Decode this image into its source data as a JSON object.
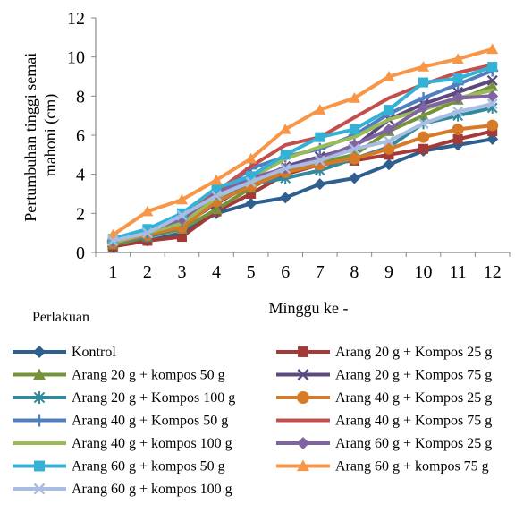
{
  "chart_data": {
    "type": "line",
    "title": "",
    "xlabel": "Minggu ke -",
    "ylabel": "Pertumbuhan tinggi semai mahoni (cm)",
    "ylabel_lines": [
      "Pertumbuhan tinggi semai",
      "mahoni (cm)"
    ],
    "x": [
      1,
      2,
      3,
      4,
      5,
      6,
      7,
      8,
      9,
      10,
      11,
      12
    ],
    "x_tick_labels": [
      "1",
      "2",
      "3",
      "4",
      "5",
      "6",
      "7",
      "8",
      "9",
      "10",
      "11",
      "12"
    ],
    "y_tick_labels": [
      "0",
      "2",
      "4",
      "6",
      "8",
      "10",
      "12"
    ],
    "ylim": [
      0,
      12
    ],
    "grid": false,
    "legend_title": "Perlakuan",
    "legend_position": "bottom",
    "series": [
      {
        "name": "Kontrol",
        "color": "#2F5F8F",
        "marker": "diamond",
        "values": [
          0.3,
          0.6,
          1.0,
          2.0,
          2.5,
          2.8,
          3.5,
          3.8,
          4.5,
          5.2,
          5.5,
          5.8
        ]
      },
      {
        "name": "Arang 20 g + Kompos 25 g",
        "color": "#A33A37",
        "marker": "square",
        "values": [
          0.3,
          0.6,
          0.8,
          2.1,
          3.0,
          4.0,
          4.5,
          4.7,
          5.0,
          5.3,
          5.8,
          6.2
        ]
      },
      {
        "name": "Arang 20 g + kompos 50 g",
        "color": "#76933C",
        "marker": "triangle",
        "values": [
          0.4,
          0.8,
          1.2,
          2.2,
          3.3,
          4.2,
          4.6,
          5.0,
          6.2,
          7.0,
          7.8,
          8.5
        ]
      },
      {
        "name": "Arang 20 g + Kompos 75 g",
        "color": "#5C4A7E",
        "marker": "x",
        "values": [
          0.5,
          0.9,
          1.4,
          2.5,
          3.5,
          4.4,
          4.9,
          5.4,
          6.8,
          7.6,
          8.2,
          8.8
        ]
      },
      {
        "name": "Arang 20 g + Kompos 100 g",
        "color": "#2E8A9C",
        "marker": "star",
        "values": [
          0.5,
          0.8,
          1.3,
          2.6,
          3.5,
          3.8,
          4.2,
          4.8,
          5.4,
          6.6,
          7.0,
          7.4
        ]
      },
      {
        "name": "Arang 40 g + Kompos 25 g",
        "color": "#D67A27",
        "marker": "circle",
        "values": [
          0.5,
          0.9,
          1.3,
          2.6,
          3.4,
          4.1,
          4.5,
          4.8,
          5.3,
          5.9,
          6.3,
          6.5
        ]
      },
      {
        "name": "Arang 40 g + Kompos 50 g",
        "color": "#4F7FBF",
        "marker": "plus",
        "values": [
          0.6,
          1.0,
          1.6,
          3.0,
          4.3,
          4.9,
          5.3,
          6.0,
          7.1,
          7.9,
          8.6,
          9.3
        ]
      },
      {
        "name": "Arang 40 g + Kompos 75 g",
        "color": "#C44E4C",
        "marker": "none",
        "values": [
          0.6,
          1.1,
          1.8,
          3.1,
          4.4,
          5.5,
          5.9,
          6.9,
          7.9,
          8.6,
          9.2,
          9.6
        ]
      },
      {
        "name": "Arang 40 g + kompos 100 g",
        "color": "#9BBB59",
        "marker": "none",
        "values": [
          0.5,
          1.0,
          1.5,
          2.8,
          3.8,
          4.8,
          5.4,
          5.9,
          6.8,
          7.3,
          7.9,
          8.3
        ]
      },
      {
        "name": "Arang 60 g + Kompos 25 g",
        "color": "#8064A2",
        "marker": "diamond",
        "values": [
          0.6,
          1.1,
          1.7,
          3.0,
          3.8,
          4.3,
          4.8,
          5.5,
          6.3,
          7.4,
          7.9,
          8.0
        ]
      },
      {
        "name": "Arang 60 g + kompos 50 g",
        "color": "#33B2D6",
        "marker": "square",
        "values": [
          0.7,
          1.2,
          2.0,
          3.3,
          3.9,
          5.0,
          5.9,
          6.3,
          7.3,
          8.7,
          8.9,
          9.5
        ]
      },
      {
        "name": "Arang 60 g + kompos 75 g",
        "color": "#F79646",
        "marker": "triangle",
        "values": [
          0.9,
          2.1,
          2.7,
          3.7,
          4.8,
          6.3,
          7.3,
          7.9,
          9.0,
          9.5,
          9.9,
          10.4
        ]
      },
      {
        "name": "Arang 60 g + kompos 100 g",
        "color": "#A9BCE2",
        "marker": "x",
        "values": [
          0.6,
          1.0,
          1.9,
          2.9,
          3.6,
          4.3,
          4.7,
          5.3,
          5.7,
          6.6,
          7.2,
          7.6
        ]
      }
    ]
  }
}
